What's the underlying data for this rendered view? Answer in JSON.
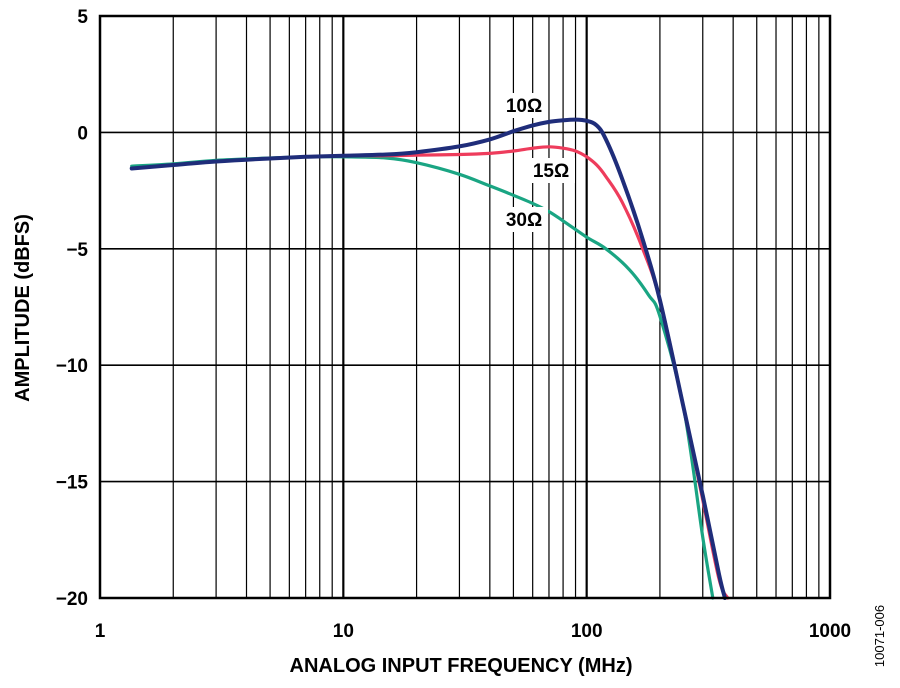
{
  "chart_data": {
    "type": "line",
    "title": "",
    "xlabel": "ANALOG INPUT FREQUENCY (MHz)",
    "ylabel": "AMPLITUDE (dBFS)",
    "x_scale": "log",
    "xlim": [
      1,
      1000
    ],
    "ylim": [
      -20,
      5
    ],
    "grid": true,
    "x_ticks": [
      "1",
      "10",
      "100",
      "1000"
    ],
    "y_ticks": [
      "5",
      "0",
      "−5",
      "−10",
      "−15",
      "−20"
    ],
    "annotations": [
      "10Ω",
      "15Ω",
      "30Ω"
    ],
    "figure_id": "10071-006",
    "series": [
      {
        "name": "10Ω",
        "color": "#1f2d7a",
        "x": [
          1.35,
          2,
          3,
          5,
          7,
          10,
          15,
          20,
          30,
          40,
          50,
          60,
          70,
          80,
          90,
          100,
          110,
          120,
          140,
          170,
          200,
          250,
          300,
          350,
          370
        ],
        "y": [
          -1.55,
          -1.4,
          -1.25,
          -1.12,
          -1.05,
          -1.0,
          -0.95,
          -0.85,
          -0.6,
          -0.3,
          0.05,
          0.3,
          0.45,
          0.52,
          0.55,
          0.5,
          0.3,
          -0.3,
          -2.0,
          -4.6,
          -7.2,
          -11.8,
          -15.6,
          -19.0,
          -20.0
        ]
      },
      {
        "name": "15Ω",
        "color": "#ee3c5c",
        "x": [
          1.35,
          2,
          3,
          5,
          7,
          10,
          15,
          20,
          30,
          40,
          50,
          60,
          70,
          80,
          90,
          100,
          110,
          120,
          140,
          170,
          200,
          250,
          300,
          350,
          380
        ],
        "y": [
          -1.55,
          -1.4,
          -1.25,
          -1.12,
          -1.05,
          -1.0,
          -1.0,
          -0.98,
          -0.95,
          -0.9,
          -0.8,
          -0.68,
          -0.62,
          -0.68,
          -0.8,
          -1.05,
          -1.4,
          -1.9,
          -3.0,
          -5.0,
          -7.2,
          -11.8,
          -15.8,
          -19.2,
          -20.0
        ]
      },
      {
        "name": "30Ω",
        "color": "#1aa583",
        "x": [
          1.35,
          2,
          3,
          5,
          7,
          10,
          15,
          20,
          30,
          40,
          50,
          60,
          70,
          80,
          100,
          120,
          150,
          180,
          200,
          250,
          300,
          330
        ],
        "y": [
          -1.45,
          -1.35,
          -1.2,
          -1.1,
          -1.05,
          -1.05,
          -1.1,
          -1.3,
          -1.8,
          -2.3,
          -2.7,
          -3.05,
          -3.4,
          -3.8,
          -4.5,
          -5.0,
          -5.9,
          -7.0,
          -7.9,
          -11.8,
          -17.4,
          -20.0
        ]
      }
    ]
  }
}
